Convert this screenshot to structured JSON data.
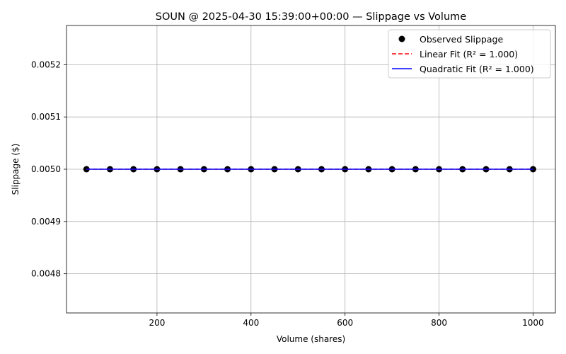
{
  "chart_data": {
    "type": "scatter",
    "title": "SOUN @ 2025-04-30 15:39:00+00:00 — Slippage vs Volume",
    "xlabel": "Volume (shares)",
    "ylabel": "Slippage ($)",
    "xlim": [
      7.5,
      1047.5
    ],
    "ylim": [
      0.004725,
      0.005275
    ],
    "x_ticks": [
      200,
      400,
      600,
      800,
      1000
    ],
    "x_tick_labels": [
      "200",
      "400",
      "600",
      "800",
      "1000"
    ],
    "y_ticks": [
      0.0048,
      0.0049,
      0.005,
      0.0051,
      0.0052
    ],
    "y_tick_labels": [
      "0.0048",
      "0.0049",
      "0.0050",
      "0.0051",
      "0.0052"
    ],
    "grid": true,
    "legend_position": "top-right",
    "series": [
      {
        "name": "Observed Slippage",
        "kind": "scatter",
        "color": "#000000",
        "x": [
          50,
          100,
          150,
          200,
          250,
          300,
          350,
          400,
          450,
          500,
          550,
          600,
          650,
          700,
          750,
          800,
          850,
          900,
          950,
          1000
        ],
        "y": [
          0.005,
          0.005,
          0.005,
          0.005,
          0.005,
          0.005,
          0.005,
          0.005,
          0.005,
          0.005,
          0.005,
          0.005,
          0.005,
          0.005,
          0.005,
          0.005,
          0.005,
          0.005,
          0.005,
          0.005
        ]
      },
      {
        "name": "Linear Fit (R² = 1.000)",
        "kind": "line",
        "style": "dashed",
        "color": "#ff0000",
        "x": [
          50,
          1000
        ],
        "y": [
          0.005,
          0.005
        ]
      },
      {
        "name": "Quadratic Fit (R² = 1.000)",
        "kind": "line",
        "style": "solid",
        "color": "#0000ff",
        "x": [
          50,
          1000
        ],
        "y": [
          0.005,
          0.005
        ]
      }
    ]
  }
}
